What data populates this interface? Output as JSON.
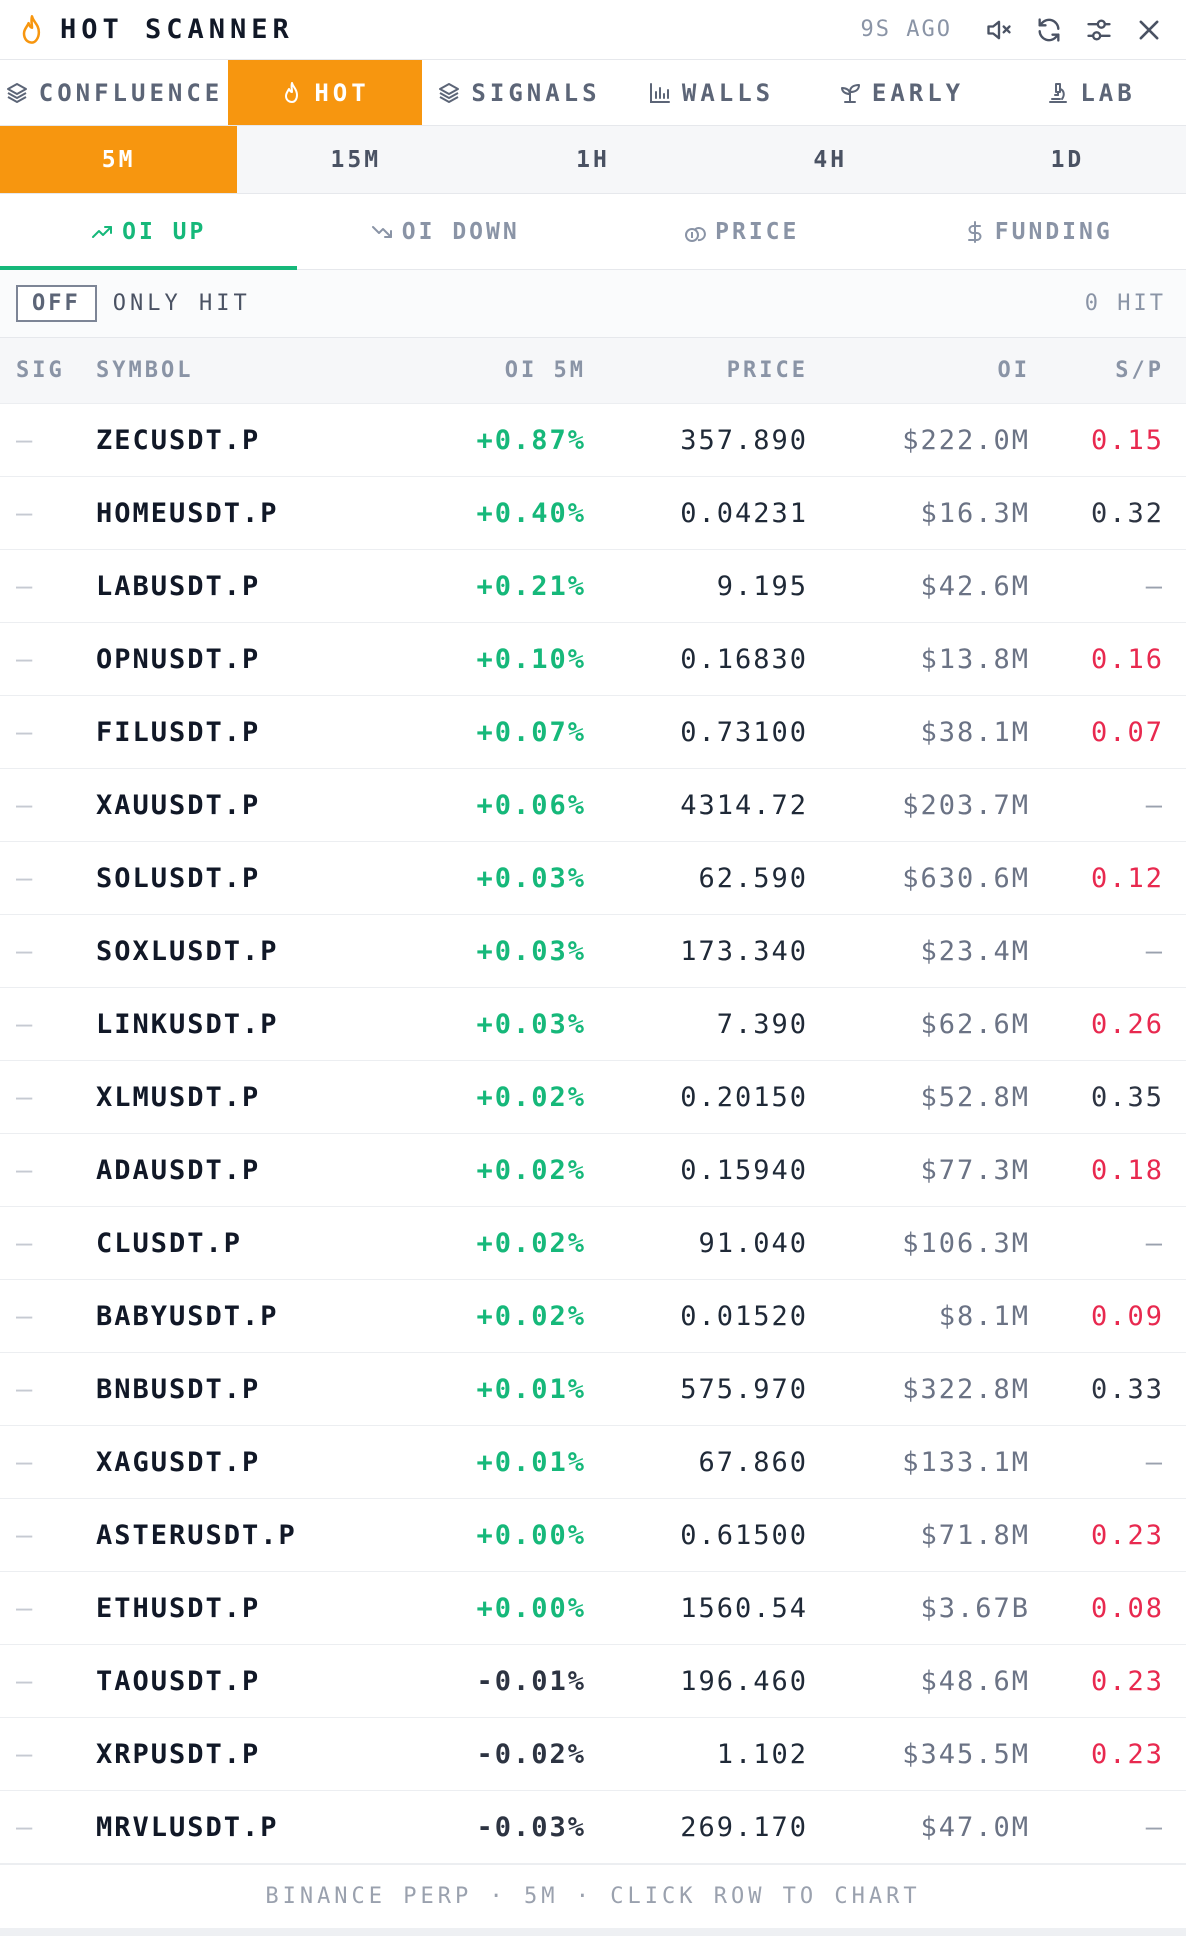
{
  "header": {
    "title": "HOT SCANNER",
    "ago": "9S AGO",
    "icons": [
      "mute-icon",
      "refresh-icon",
      "settings-icon",
      "close-icon"
    ]
  },
  "tabs": [
    {
      "label": "CONFLUENCE",
      "icon": "layers-icon",
      "active": false
    },
    {
      "label": "HOT",
      "icon": "flame-icon",
      "active": true
    },
    {
      "label": "SIGNALS",
      "icon": "layers-icon",
      "active": false
    },
    {
      "label": "WALLS",
      "icon": "bar-chart-icon",
      "active": false
    },
    {
      "label": "EARLY",
      "icon": "sprout-icon",
      "active": false
    },
    {
      "label": "LAB",
      "icon": "microscope-icon",
      "active": false
    }
  ],
  "periods": [
    {
      "label": "5M",
      "active": true
    },
    {
      "label": "15M",
      "active": false
    },
    {
      "label": "1H",
      "active": false
    },
    {
      "label": "4H",
      "active": false
    },
    {
      "label": "1D",
      "active": false
    }
  ],
  "modes": [
    {
      "label": "OI UP",
      "icon": "trend-up-icon",
      "active": true
    },
    {
      "label": "OI DOWN",
      "icon": "trend-down-icon",
      "active": false
    },
    {
      "label": "PRICE",
      "icon": "coins-icon",
      "active": false
    },
    {
      "label": "FUNDING",
      "icon": "dollar-icon",
      "active": false
    }
  ],
  "filter": {
    "toggle": "OFF",
    "label": "ONLY HIT",
    "hits": "0 HIT"
  },
  "columns": {
    "sig": "SIG",
    "symbol": "SYMBOL",
    "oi5m": "OI 5M",
    "price": "PRICE",
    "oi": "OI",
    "sp": "S/P"
  },
  "rows": [
    {
      "sig": "—",
      "symbol": "ZECUSDT.P",
      "oi5m": "+0.87%",
      "price": "357.890",
      "oi": "$222.0M",
      "sp": "0.15",
      "sp_tone": "red"
    },
    {
      "sig": "—",
      "symbol": "HOMEUSDT.P",
      "oi5m": "+0.40%",
      "price": "0.04231",
      "oi": "$16.3M",
      "sp": "0.32",
      "sp_tone": "dark"
    },
    {
      "sig": "—",
      "symbol": "LABUSDT.P",
      "oi5m": "+0.21%",
      "price": "9.195",
      "oi": "$42.6M",
      "sp": "—",
      "sp_tone": "dash"
    },
    {
      "sig": "—",
      "symbol": "OPNUSDT.P",
      "oi5m": "+0.10%",
      "price": "0.16830",
      "oi": "$13.8M",
      "sp": "0.16",
      "sp_tone": "red"
    },
    {
      "sig": "—",
      "symbol": "FILUSDT.P",
      "oi5m": "+0.07%",
      "price": "0.73100",
      "oi": "$38.1M",
      "sp": "0.07",
      "sp_tone": "red"
    },
    {
      "sig": "—",
      "symbol": "XAUUSDT.P",
      "oi5m": "+0.06%",
      "price": "4314.72",
      "oi": "$203.7M",
      "sp": "—",
      "sp_tone": "dash"
    },
    {
      "sig": "—",
      "symbol": "SOLUSDT.P",
      "oi5m": "+0.03%",
      "price": "62.590",
      "oi": "$630.6M",
      "sp": "0.12",
      "sp_tone": "red"
    },
    {
      "sig": "—",
      "symbol": "SOXLUSDT.P",
      "oi5m": "+0.03%",
      "price": "173.340",
      "oi": "$23.4M",
      "sp": "—",
      "sp_tone": "dash"
    },
    {
      "sig": "—",
      "symbol": "LINKUSDT.P",
      "oi5m": "+0.03%",
      "price": "7.390",
      "oi": "$62.6M",
      "sp": "0.26",
      "sp_tone": "red"
    },
    {
      "sig": "—",
      "symbol": "XLMUSDT.P",
      "oi5m": "+0.02%",
      "price": "0.20150",
      "oi": "$52.8M",
      "sp": "0.35",
      "sp_tone": "dark"
    },
    {
      "sig": "—",
      "symbol": "ADAUSDT.P",
      "oi5m": "+0.02%",
      "price": "0.15940",
      "oi": "$77.3M",
      "sp": "0.18",
      "sp_tone": "red"
    },
    {
      "sig": "—",
      "symbol": "CLUSDT.P",
      "oi5m": "+0.02%",
      "price": "91.040",
      "oi": "$106.3M",
      "sp": "—",
      "sp_tone": "dash"
    },
    {
      "sig": "—",
      "symbol": "BABYUSDT.P",
      "oi5m": "+0.02%",
      "price": "0.01520",
      "oi": "$8.1M",
      "sp": "0.09",
      "sp_tone": "red"
    },
    {
      "sig": "—",
      "symbol": "BNBUSDT.P",
      "oi5m": "+0.01%",
      "price": "575.970",
      "oi": "$322.8M",
      "sp": "0.33",
      "sp_tone": "dark"
    },
    {
      "sig": "—",
      "symbol": "XAGUSDT.P",
      "oi5m": "+0.01%",
      "price": "67.860",
      "oi": "$133.1M",
      "sp": "—",
      "sp_tone": "dash"
    },
    {
      "sig": "—",
      "symbol": "ASTERUSDT.P",
      "oi5m": "+0.00%",
      "price": "0.61500",
      "oi": "$71.8M",
      "sp": "0.23",
      "sp_tone": "red"
    },
    {
      "sig": "—",
      "symbol": "ETHUSDT.P",
      "oi5m": "+0.00%",
      "price": "1560.54",
      "oi": "$3.67B",
      "sp": "0.08",
      "sp_tone": "red"
    },
    {
      "sig": "—",
      "symbol": "TAOUSDT.P",
      "oi5m": "-0.01%",
      "price": "196.460",
      "oi": "$48.6M",
      "sp": "0.23",
      "sp_tone": "red"
    },
    {
      "sig": "—",
      "symbol": "XRPUSDT.P",
      "oi5m": "-0.02%",
      "price": "1.102",
      "oi": "$345.5M",
      "sp": "0.23",
      "sp_tone": "red"
    },
    {
      "sig": "—",
      "symbol": "MRVLUSDT.P",
      "oi5m": "-0.03%",
      "price": "269.170",
      "oi": "$47.0M",
      "sp": "—",
      "sp_tone": "dash"
    }
  ],
  "footer": "BINANCE PERP · 5M · CLICK ROW TO CHART",
  "colors": {
    "accent": "#f7960f",
    "positive": "#16b87a",
    "sp_red": "#e8294f"
  }
}
